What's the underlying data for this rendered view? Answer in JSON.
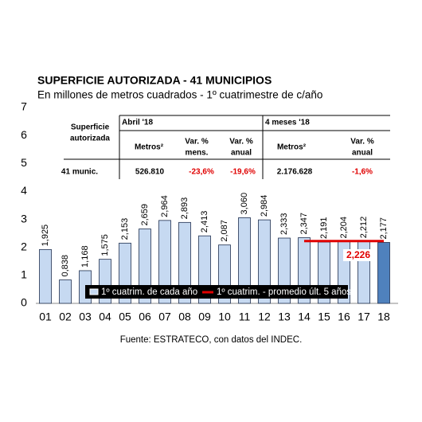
{
  "chart_data": {
    "type": "bar",
    "title": "SUPERFICIE AUTORIZADA - 41 MUNICIPIOS",
    "subtitle": "En millones de metros cuadrados - 1º cuatrimestre de c/año",
    "categories": [
      "01",
      "02",
      "03",
      "04",
      "05",
      "06",
      "07",
      "08",
      "09",
      "10",
      "11",
      "12",
      "13",
      "14",
      "15",
      "16",
      "17",
      "18"
    ],
    "series": [
      {
        "name": "1º cuatrim. de cada año",
        "color": "#c6d9f1",
        "highlight_color": "#4f81bd",
        "values": [
          1.925,
          0.838,
          1.168,
          1.575,
          2.153,
          2.659,
          2.964,
          2.893,
          2.413,
          2.087,
          3.06,
          2.984,
          2.333,
          2.347,
          2.191,
          2.204,
          2.212,
          2.177
        ],
        "value_labels": [
          "1,925",
          "0,838",
          "1,168",
          "1,575",
          "2,153",
          "2,659",
          "2,964",
          "2,893",
          "2,413",
          "2,087",
          "3,060",
          "2,984",
          "2,333",
          "2,347",
          "2,191",
          "2,204",
          "2,212",
          "2,177"
        ]
      },
      {
        "name": "1º cuatrim. - promedio últ. 5 años",
        "color": "#e00000",
        "type": "line",
        "values": [
          null,
          null,
          null,
          null,
          null,
          null,
          null,
          null,
          null,
          null,
          null,
          null,
          null,
          2.226,
          2.226,
          2.226,
          2.226,
          2.226
        ],
        "value_labels": [
          null,
          null,
          null,
          null,
          null,
          null,
          null,
          null,
          null,
          null,
          null,
          null,
          null,
          null,
          null,
          null,
          "2,226",
          null
        ]
      }
    ],
    "ylim": [
      0,
      7
    ],
    "yticks": [
      0,
      1,
      2,
      3,
      4,
      5,
      6,
      7
    ],
    "source": "Fuente: ESTRATECO, con datos del INDEC.",
    "table": {
      "row_header": [
        "Superficie",
        "autorizada"
      ],
      "groups": [
        "Abril '18",
        "4 meses '18"
      ],
      "columns": [
        [
          "Metros²"
        ],
        [
          "Var. %",
          "mens."
        ],
        [
          "Var. %",
          "anual"
        ],
        [
          "Metros²"
        ],
        [
          "Var. %",
          "anual"
        ]
      ],
      "rows": [
        [
          "41 munic.",
          "526.810",
          "-23,6%",
          "-19,6%",
          "2.176.628",
          "-1,6%"
        ]
      ]
    }
  }
}
